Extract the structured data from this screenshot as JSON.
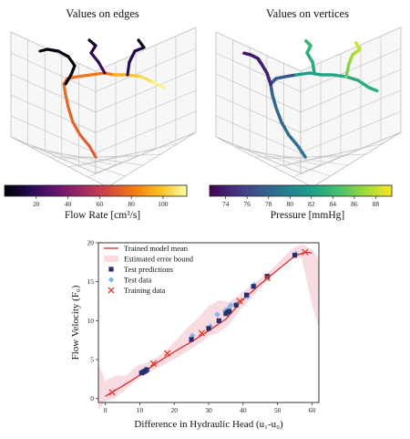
{
  "panels": {
    "edges": {
      "title": "Values on edges",
      "colorbar_label": "Flow Rate [cm³/s]"
    },
    "vertices": {
      "title": "Values on vertices",
      "colorbar_label": "Pressure [mmHg]"
    }
  },
  "colors": {
    "red_line": "#dc2b2b",
    "error_band": "#f4c9d3",
    "test_pred": "#2b2d6e",
    "test_data": "#86b6e8",
    "training": "#e23a2a",
    "grid": "#bdbdbd"
  },
  "chart_data": [
    {
      "type": "3d-line",
      "title": "Values on edges",
      "colorbar": {
        "label": "Flow Rate [cm³/s]",
        "ticks": [
          20,
          40,
          60,
          80,
          100
        ],
        "range": [
          0,
          115
        ],
        "colormap": "inferno"
      }
    },
    {
      "type": "3d-line",
      "title": "Values on vertices",
      "colorbar": {
        "label": "Pressure [mmHg]",
        "ticks": [
          74,
          76,
          78,
          80,
          82,
          84,
          86,
          88
        ],
        "range": [
          72.5,
          89.5
        ],
        "colormap": "viridis"
      }
    },
    {
      "type": "scatter",
      "xlabel": "Difference in Hydraulic Head (u₁-u₀)",
      "ylabel": "Flow Velocity (F₀)",
      "xlim": [
        -2,
        62
      ],
      "ylim": [
        -0.5,
        20
      ],
      "xticks": [
        0,
        10,
        20,
        30,
        40,
        50,
        60
      ],
      "yticks": [
        0,
        5,
        10,
        15,
        20
      ],
      "legend": [
        "Trained model mean",
        "Estimated error bound",
        "Test predictions",
        "Test data",
        "Training data"
      ],
      "legend_placement": "top-left",
      "model_mean": {
        "x": [
          0,
          5,
          10,
          15,
          20,
          25,
          30,
          35,
          40,
          45,
          50,
          55,
          58,
          60
        ],
        "y": [
          0.3,
          1.6,
          3.0,
          4.6,
          6.0,
          7.3,
          8.7,
          10.2,
          12.7,
          14.7,
          16.5,
          18.3,
          18.8,
          18.7
        ]
      },
      "error_bound": {
        "x": [
          -2,
          0,
          3,
          6,
          9,
          12,
          15,
          18,
          21,
          24,
          27,
          30,
          33,
          36,
          39,
          42,
          45,
          48,
          51,
          54,
          57,
          60,
          62
        ],
        "upper": [
          4.5,
          2.3,
          3.0,
          2.9,
          4.2,
          4.6,
          5.3,
          6.4,
          7.7,
          9.2,
          10.4,
          11.9,
          12.6,
          12.4,
          13.4,
          14.4,
          15.4,
          16.5,
          17.8,
          19.2,
          19.8,
          19.2,
          18.0
        ],
        "lower": [
          -1.5,
          -0.4,
          0.1,
          1.2,
          2.4,
          3.3,
          3.9,
          4.6,
          5.3,
          6.1,
          7.0,
          8.0,
          8.5,
          9.5,
          11.3,
          12.7,
          14.2,
          15.6,
          17.0,
          18.0,
          18.0,
          12.0,
          9.0
        ]
      },
      "test_predictions": {
        "x": [
          10.5,
          11.0,
          11.5,
          12.0,
          25.0,
          30.0,
          33.0,
          35.0,
          35.5,
          36.0,
          38.0,
          41.0,
          43.0,
          47.0,
          55.0
        ],
        "y": [
          3.3,
          3.4,
          3.5,
          3.7,
          7.6,
          9.0,
          10.0,
          10.9,
          11.1,
          11.2,
          12.0,
          13.3,
          14.4,
          15.7,
          18.4
        ]
      },
      "test_data": {
        "x": [
          10.8,
          11.2,
          11.8,
          12.3,
          25.3,
          30.5,
          32.5,
          34.8,
          35.8,
          36.5,
          38.3,
          41.3,
          43.2,
          47.2,
          55.3
        ],
        "y": [
          3.5,
          3.3,
          3.8,
          3.6,
          8.1,
          9.3,
          10.8,
          11.3,
          11.6,
          12.0,
          12.2,
          13.1,
          14.6,
          15.5,
          18.6
        ]
      },
      "training": {
        "x": [
          2.0,
          14.0,
          18.0,
          28.0,
          39.0,
          47.0,
          58.0
        ],
        "y": [
          0.8,
          4.5,
          5.8,
          8.4,
          12.5,
          15.5,
          18.8
        ]
      }
    }
  ]
}
